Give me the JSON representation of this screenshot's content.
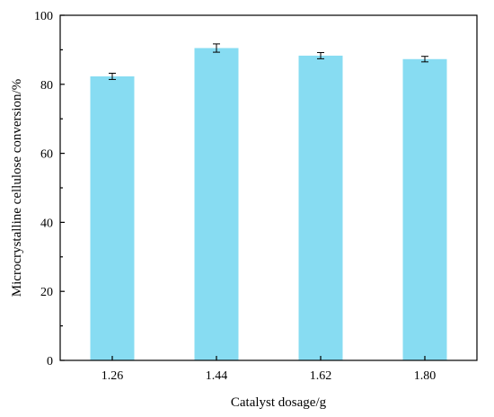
{
  "chart_data": {
    "type": "bar",
    "categories": [
      "1.26",
      "1.44",
      "1.62",
      "1.80"
    ],
    "values": [
      82.3,
      90.5,
      88.3,
      87.3
    ],
    "errors": [
      0.9,
      1.2,
      0.9,
      0.8
    ],
    "xlabel": "Catalyst dosage/g",
    "ylabel": "Microcrystalline cellulose conversion/%",
    "ylim": [
      0,
      100
    ],
    "yticks": [
      "0",
      "20",
      "40",
      "60",
      "80",
      "100"
    ],
    "bar_color": "#87dcf2",
    "grid": false,
    "legend": "none"
  }
}
